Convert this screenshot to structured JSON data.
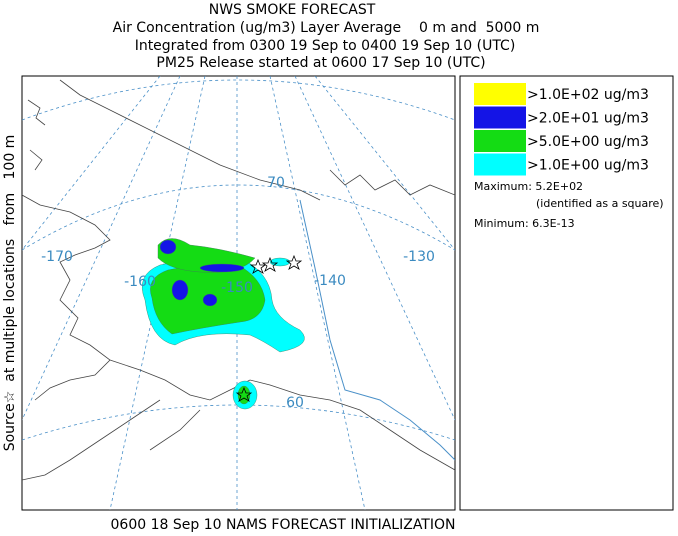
{
  "header": {
    "title": "NWS SMOKE FORECAST",
    "lines": [
      "Air Concentration (ug/m3) Layer Average    0 m and  5000 m",
      "Integrated from 0300 19 Sep to 0400 19 Sep 10 (UTC)",
      "PM25 Release started at 0600 17 Sep 10 (UTC)"
    ]
  },
  "side_label": "Source☆  at multiple locations   from   100 m",
  "map": {
    "lon_labels": [
      "-170",
      "-160",
      "-150",
      "-140",
      "-130"
    ],
    "lat_labels": [
      "70",
      "60"
    ]
  },
  "legend": {
    "entries": [
      {
        "label": ">1.0E+02 ug/m3",
        "color": "#ffff00"
      },
      {
        "label": ">2.0E+01 ug/m3",
        "color": "#1414e6"
      },
      {
        "label": ">5.0E+00 ug/m3",
        "color": "#14dc14"
      },
      {
        "label": ">1.0E+00 ug/m3",
        "color": "#00ffff"
      }
    ],
    "maximum": "Maximum: 5.2E+02",
    "note": "(identified as a square)",
    "minimum": "Minimum: 6.3E-13"
  },
  "footer": "0600 18 Sep 10 NAMS FORECAST INITIALIZATION"
}
